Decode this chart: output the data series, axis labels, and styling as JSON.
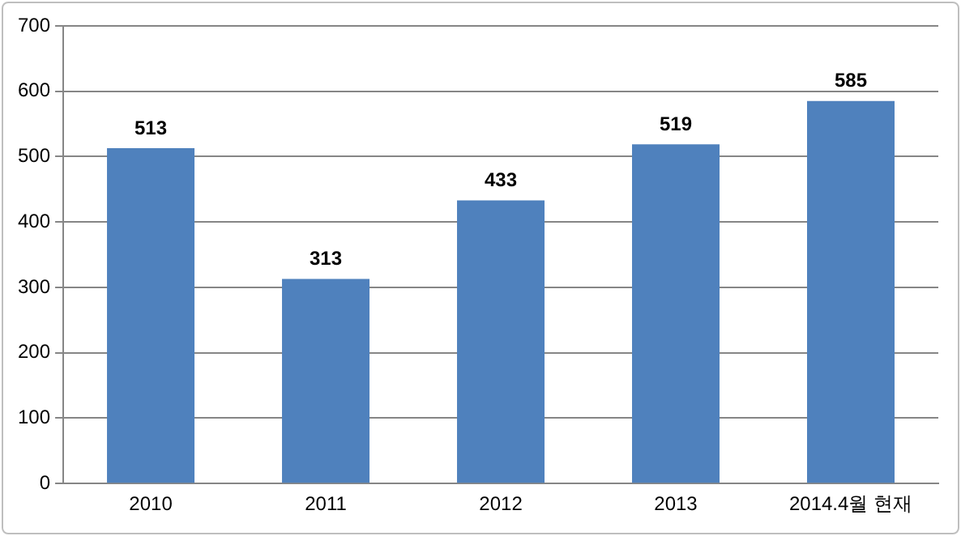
{
  "chart_data": {
    "type": "bar",
    "categories": [
      "2010",
      "2011",
      "2012",
      "2013",
      "2014.4월 현재"
    ],
    "values": [
      513,
      313,
      433,
      519,
      585
    ],
    "color": "#4f81bd",
    "ylim": [
      0,
      700
    ],
    "yticks": [
      0,
      100,
      200,
      300,
      400,
      500,
      600,
      700
    ],
    "grid": "y",
    "data_labels": true
  }
}
